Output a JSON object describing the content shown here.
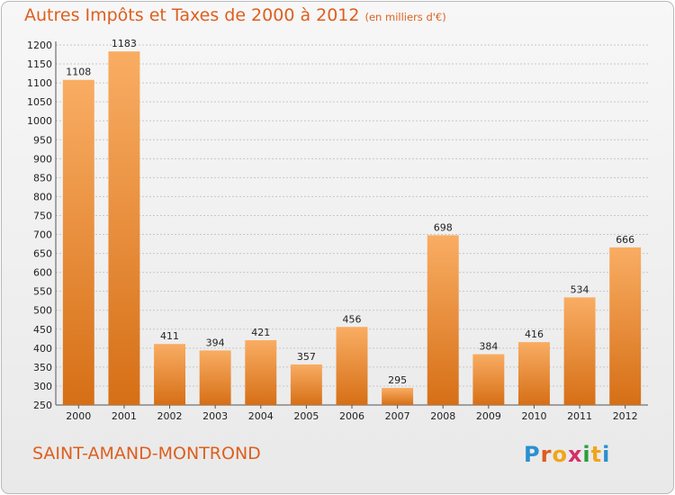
{
  "header": {
    "title": "Autres Impôts et Taxes de 2000 à 2012",
    "subtitle": "(en milliers d'€)"
  },
  "footer": {
    "town": "SAINT-AMAND-MONTROND",
    "logo_text": "Proxiti"
  },
  "colors": {
    "title": "#dd5f1f",
    "bar_light": "#f9ad63",
    "bar_dark": "#d66f16",
    "background": "#eeeeee"
  },
  "chart_data": {
    "type": "bar",
    "title": "Autres Impôts et Taxes de 2000 à 2012",
    "subtitle": "(en milliers d'€)",
    "categories": [
      "2000",
      "2001",
      "2002",
      "2003",
      "2004",
      "2005",
      "2006",
      "2007",
      "2008",
      "2009",
      "2010",
      "2011",
      "2012"
    ],
    "values": [
      1108,
      1183,
      411,
      394,
      421,
      357,
      456,
      295,
      698,
      384,
      416,
      534,
      666
    ],
    "ylim": [
      250,
      1200
    ],
    "yticks": [
      250,
      300,
      350,
      400,
      450,
      500,
      550,
      600,
      650,
      700,
      750,
      800,
      850,
      900,
      950,
      1000,
      1050,
      1100,
      1150,
      1200
    ],
    "grid": true,
    "legend": "none"
  }
}
